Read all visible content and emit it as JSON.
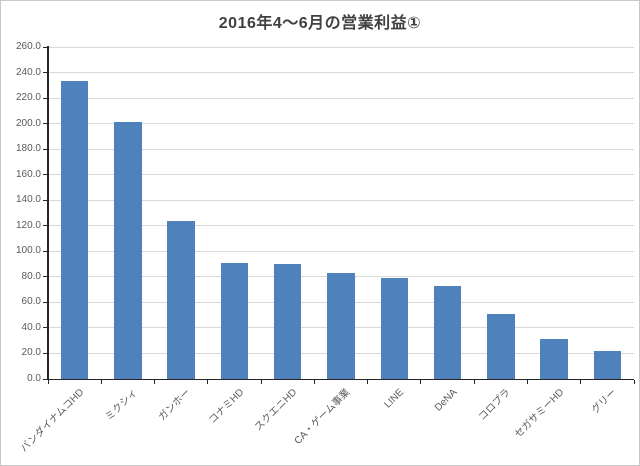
{
  "window": {
    "background": "#ffffff",
    "border_color": "#c9c9c9"
  },
  "chart_data": {
    "type": "bar",
    "title": "2016年4～6月の営業利益①",
    "categories": [
      "バンダイナムコHD",
      "ミクシィ",
      "ガンホー",
      "コナミHD",
      "スクエニHD",
      "CA・ゲーム事業",
      "LINE",
      "DeNA",
      "コロプラ",
      "セガサミーHD",
      "グリー"
    ],
    "values": [
      233,
      201,
      124,
      91,
      90,
      83,
      79,
      73,
      51,
      31,
      22
    ],
    "xlabel": "",
    "ylabel": "",
    "ylim": [
      0,
      260
    ],
    "ytick_step": 20,
    "ytick_labels": [
      "0.0",
      "20.0",
      "40.0",
      "60.0",
      "80.0",
      "100.0",
      "120.0",
      "140.0",
      "160.0",
      "180.0",
      "200.0",
      "220.0",
      "240.0",
      "260.0"
    ],
    "grid": true,
    "legend": false,
    "category_label_rotation_deg": 45,
    "colors": {
      "bar": "#4f81bd",
      "gridline": "#d9d9d9",
      "axis": "#262626",
      "tick_label": "#595959",
      "title": "#404040"
    }
  }
}
